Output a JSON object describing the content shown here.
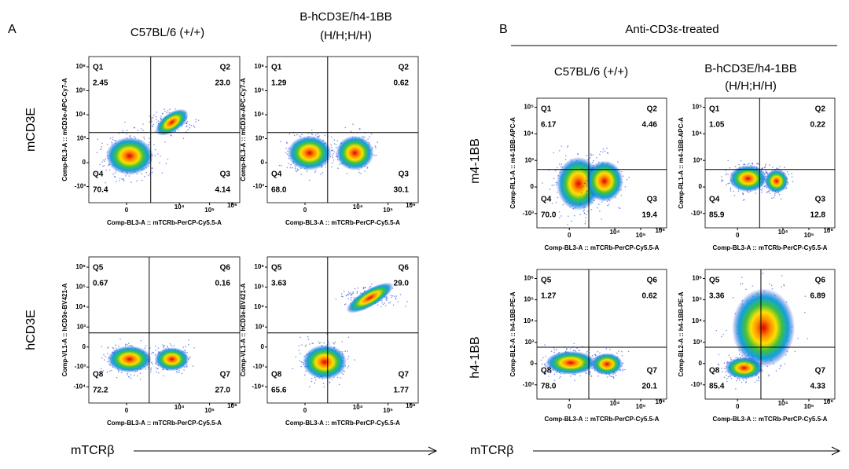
{
  "panels": [
    {
      "label": "A",
      "columns": [
        [
          "C57BL/6 (+/+)"
        ],
        [
          "B-hCD3E/h4-1BB",
          "(H/H;H/H)"
        ]
      ],
      "rows": [
        "mCD3E",
        "hCD3E"
      ],
      "x_arrow_label": "mTCRβ",
      "plots": [
        {
          "y_axis_label": "Comp-RL3-A :: mCD3e-APC-Cy7-A",
          "x_axis_label": "Comp-BL3-A :: mTCRb-PerCP-Cy5.5-A",
          "yticks": [
            "10⁶",
            "10⁵",
            "10⁴",
            "10³",
            "0",
            "-10³"
          ],
          "xticks": [
            "0",
            "10⁴",
            "10⁵",
            "10⁶"
          ],
          "quadrants": [
            {
              "name": "Q1",
              "value": "2.45"
            },
            {
              "name": "Q2",
              "value": "23.0"
            },
            {
              "name": "Q3",
              "value": "4.14"
            },
            {
              "name": "Q4",
              "value": "70.4"
            }
          ]
        },
        {
          "y_axis_label": "Comp-RL3-A :: mCD3e-APC-Cy7-A",
          "x_axis_label": "Comp-BL3-A :: mTCRb-PerCP-Cy5.5-A",
          "yticks": [
            "10⁶",
            "10⁵",
            "10⁴",
            "10³",
            "0",
            "-10³"
          ],
          "xticks": [
            "0",
            "10⁴",
            "10⁵",
            "10⁶"
          ],
          "quadrants": [
            {
              "name": "Q1",
              "value": "1.29"
            },
            {
              "name": "Q2",
              "value": "0.62"
            },
            {
              "name": "Q3",
              "value": "30.1"
            },
            {
              "name": "Q4",
              "value": "68.0"
            }
          ]
        },
        {
          "y_axis_label": "Comp-VL1-A :: hCD3e-BV421-A",
          "x_axis_label": "Comp-BL3-A :: mTCRb-PerCP-Cy5.5-A",
          "yticks": [
            "10⁶",
            "10⁵",
            "10⁴",
            "10³",
            "0",
            "-10³",
            "-10⁴"
          ],
          "xticks": [
            "0",
            "10⁴",
            "10⁵",
            "10⁶"
          ],
          "quadrants": [
            {
              "name": "Q5",
              "value": "0.67"
            },
            {
              "name": "Q6",
              "value": "0.16"
            },
            {
              "name": "Q7",
              "value": "27.0"
            },
            {
              "name": "Q8",
              "value": "72.2"
            }
          ]
        },
        {
          "y_axis_label": "Comp-VL1-A :: hCD3e-BV421-A",
          "x_axis_label": "Comp-BL3-A :: mTCRb-PerCP-Cy5.5-A",
          "yticks": [
            "10⁶",
            "10⁵",
            "10⁴",
            "10³",
            "0",
            "-10³",
            "-10⁴"
          ],
          "xticks": [
            "0",
            "10⁴",
            "10⁵",
            "10⁶"
          ],
          "quadrants": [
            {
              "name": "Q5",
              "value": "3.63"
            },
            {
              "name": "Q6",
              "value": "29.0"
            },
            {
              "name": "Q7",
              "value": "1.77"
            },
            {
              "name": "Q8",
              "value": "65.6"
            }
          ]
        }
      ]
    },
    {
      "label": "B",
      "title": "Anti-CD3ε-treated",
      "columns": [
        [
          "C57BL/6 (+/+)"
        ],
        [
          "B-hCD3E/h4-1BB",
          "(H/H;H/H)"
        ]
      ],
      "rows": [
        "m4-1BB",
        "h4-1BB"
      ],
      "x_arrow_label": "mTCRβ",
      "plots": [
        {
          "y_axis_label": "Comp-RL1-A :: m4-1BB-APC-A",
          "x_axis_label": "Comp-BL3-A :: mTCRb-PerCP-Cy5.5-A",
          "yticks": [
            "10⁵",
            "10⁴",
            "10³",
            "0",
            "-10³"
          ],
          "xticks": [
            "0",
            "10⁴",
            "10⁵",
            "10⁶"
          ],
          "quadrants": [
            {
              "name": "Q1",
              "value": "6.17"
            },
            {
              "name": "Q2",
              "value": "4.46"
            },
            {
              "name": "Q3",
              "value": "19.4"
            },
            {
              "name": "Q4",
              "value": "70.0"
            }
          ]
        },
        {
          "y_axis_label": "Comp-RL1-A :: m4-1BB-APC-A",
          "x_axis_label": "Comp-BL3-A :: mTCRb-PerCP-Cy5.5-A",
          "yticks": [
            "10⁵",
            "10⁴",
            "10³",
            "0",
            "-10³"
          ],
          "xticks": [
            "0",
            "10⁴",
            "10⁵",
            "10⁶"
          ],
          "quadrants": [
            {
              "name": "Q1",
              "value": "1.05"
            },
            {
              "name": "Q2",
              "value": "0.22"
            },
            {
              "name": "Q3",
              "value": "12.8"
            },
            {
              "name": "Q4",
              "value": "85.9"
            }
          ]
        },
        {
          "y_axis_label": "Comp-BL2-A :: h4-1BB-PE-A",
          "x_axis_label": "Comp-BL3-A :: mTCRb-PerCP-Cy5.5-A",
          "yticks": [
            "10⁶",
            "10⁵",
            "10⁴",
            "10³",
            "0",
            "-10³"
          ],
          "xticks": [
            "0",
            "10⁴",
            "10⁵",
            "10⁶"
          ],
          "quadrants": [
            {
              "name": "Q5",
              "value": "1.27"
            },
            {
              "name": "Q6",
              "value": "0.62"
            },
            {
              "name": "Q7",
              "value": "20.1"
            },
            {
              "name": "Q8",
              "value": "78.0"
            }
          ]
        },
        {
          "y_axis_label": "Comp-BL2-A :: h4-1BB-PE-A",
          "x_axis_label": "Comp-BL3-A :: mTCRb-PerCP-Cy5.5-A",
          "yticks": [
            "10⁶",
            "10⁵",
            "10⁴",
            "10³",
            "0",
            "-10³"
          ],
          "xticks": [
            "0",
            "10⁴",
            "10⁵",
            "10⁶"
          ],
          "quadrants": [
            {
              "name": "Q5",
              "value": "3.36"
            },
            {
              "name": "Q6",
              "value": "6.89"
            },
            {
              "name": "Q7",
              "value": "4.33"
            },
            {
              "name": "Q8",
              "value": "85.4"
            }
          ]
        }
      ]
    }
  ]
}
